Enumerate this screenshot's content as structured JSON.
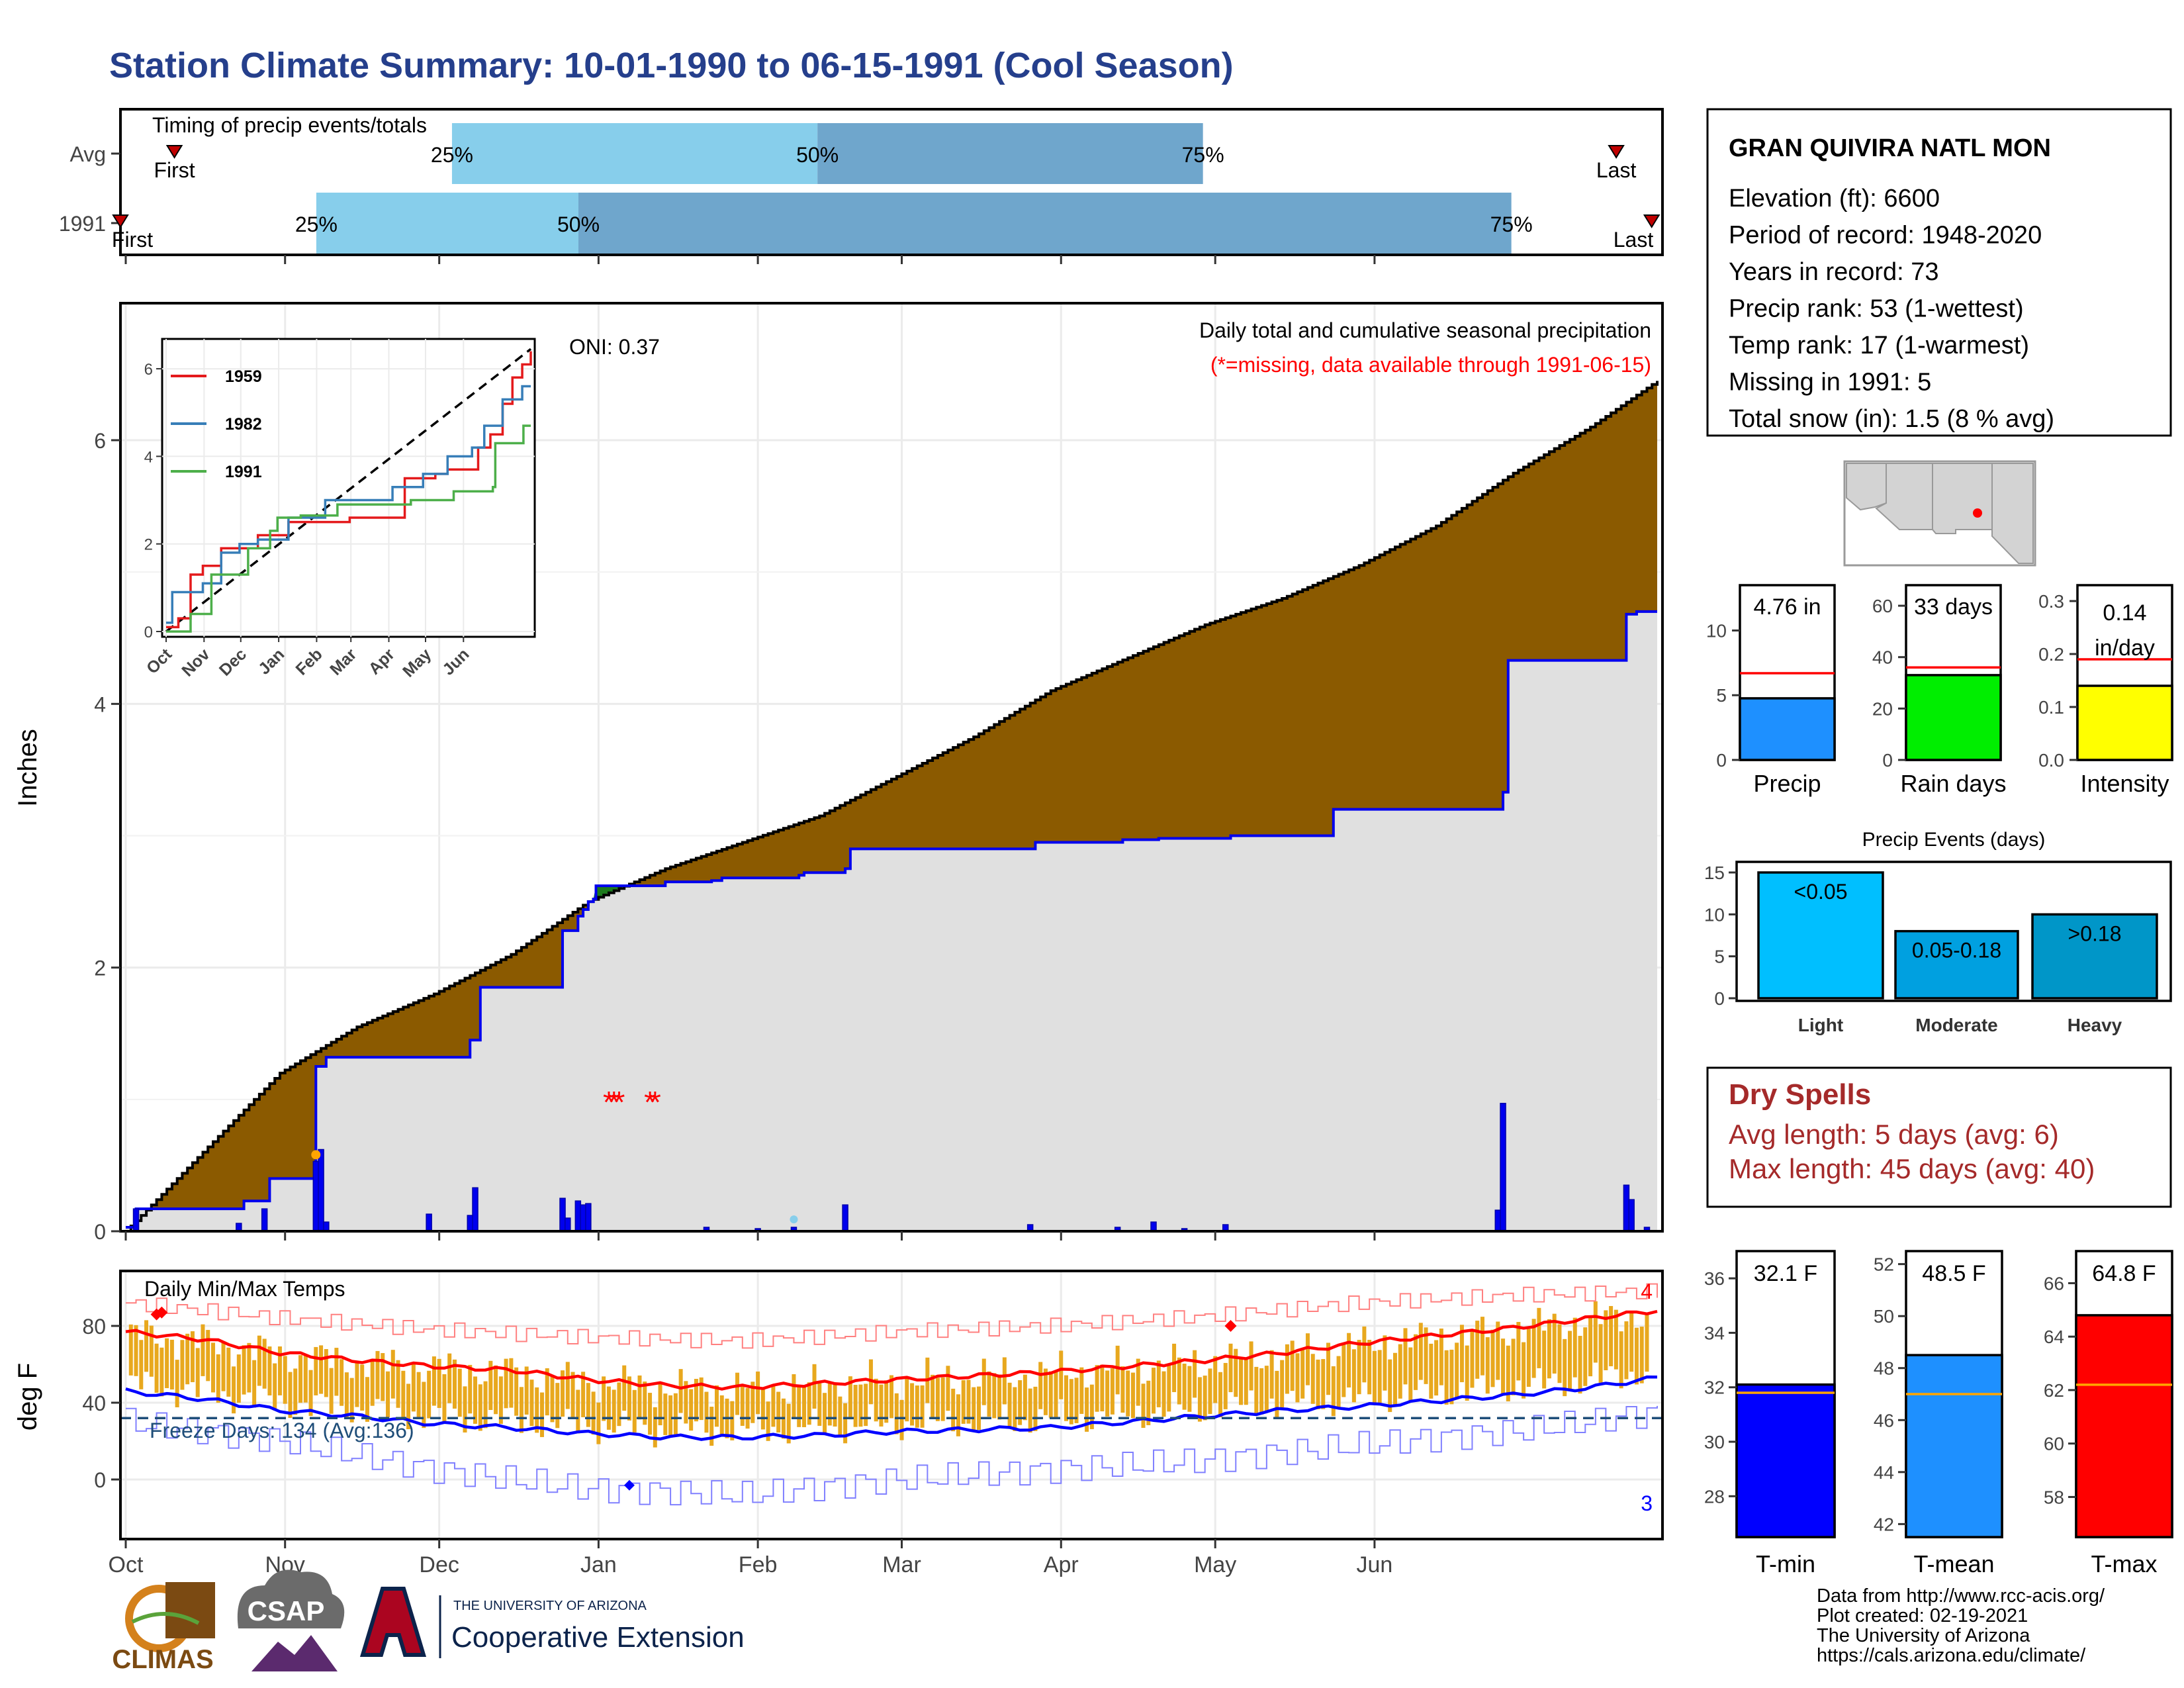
{
  "page": {
    "title": "Station Climate Summary: 10-01-1990 to 06-15-1991 (Cool Season)",
    "footer_lines": [
      "Data from http://www.rcc-acis.org/",
      "Plot created: 02-19-2021",
      "The University of Arizona",
      "https://cals.arizona.edu/climate/"
    ],
    "logos": {
      "climas": "CLIMAS",
      "csap": "CSAP",
      "ua_top": "THE UNIVERSITY OF ARIZONA",
      "ua_bottom": "Cooperative Extension"
    }
  },
  "station_box": {
    "name": "GRAN QUIVIRA NATL MON",
    "lines": [
      "Elevation (ft): 6600",
      "Period of record: 1948-2020",
      "Years in record: 73",
      "Precip rank: 53 (1-wettest)",
      "Temp rank: 17 (1-warmest)",
      "Missing in 1991: 5",
      "Total snow (in): 1.5 (8 % avg)"
    ]
  },
  "dry_spells": {
    "title": "Dry Spells",
    "lines": [
      "Avg length: 5 days (avg: 6)",
      "Max length: 45 days (avg: 40)"
    ]
  },
  "colors": {
    "title": "#253f8c",
    "cumulative_fill": "#8b5a00",
    "cumulative_below_fill": "#1c7a1c",
    "observed_line": "#0000ee",
    "avg_line": "#000000",
    "background_fill": "#e0e0e0",
    "timing_light": "#87ceeb",
    "timing_dark": "#6fa6cc",
    "temp_bars": "#e8a81e",
    "tmax": "#ff0000",
    "tmin": "#0000ff",
    "dry_spell_text": "#a52a2a"
  },
  "chart_data": [
    {
      "id": "timing",
      "type": "bar",
      "title": "Timing of precip events/totals",
      "rows": [
        {
          "label": "Avg",
          "first_pos": 0.035,
          "q25": 0.215,
          "q50": 0.452,
          "q75": 0.702,
          "last_pos": 0.97,
          "first": "First",
          "last": "Last"
        },
        {
          "label": "1991",
          "first_pos": 0.0,
          "q25": 0.127,
          "q50": 0.297,
          "q75": 0.902,
          "last_pos": 0.993,
          "first": "First",
          "last": "Last"
        }
      ],
      "q_labels": [
        "25%",
        "50%",
        "75%"
      ]
    },
    {
      "id": "precip",
      "type": "area",
      "title": "Daily total and cumulative seasonal precipitation",
      "subtitle": "(*=missing, data available through 1991-06-15)",
      "oni": "ONI: 0.37",
      "ylabel": "Inches",
      "ylim": [
        0,
        7
      ],
      "yticks": [
        0,
        2,
        4,
        6
      ],
      "xmonths": [
        "Oct",
        "Nov",
        "Dec",
        "Jan",
        "Feb",
        "Mar",
        "Apr",
        "May",
        "Jun"
      ],
      "avg_cum": [
        [
          0,
          0
        ],
        [
          15,
          0.6
        ],
        [
          30,
          1.2
        ],
        [
          45,
          1.55
        ],
        [
          60,
          1.8
        ],
        [
          75,
          2.1
        ],
        [
          90,
          2.5
        ],
        [
          105,
          2.75
        ],
        [
          120,
          2.95
        ],
        [
          135,
          3.15
        ],
        [
          150,
          3.45
        ],
        [
          165,
          3.75
        ],
        [
          180,
          4.1
        ],
        [
          195,
          4.35
        ],
        [
          210,
          4.6
        ],
        [
          225,
          4.8
        ],
        [
          240,
          5.05
        ],
        [
          255,
          5.35
        ],
        [
          270,
          5.75
        ],
        [
          285,
          6.1
        ],
        [
          298,
          6.45
        ]
      ],
      "obs_cum": [
        [
          0,
          0.03
        ],
        [
          2,
          0.17
        ],
        [
          22,
          0.17
        ],
        [
          23,
          0.23
        ],
        [
          27,
          0.23
        ],
        [
          28,
          0.4
        ],
        [
          36,
          0.4
        ],
        [
          37,
          1.25
        ],
        [
          39,
          1.32
        ],
        [
          66,
          1.32
        ],
        [
          67,
          1.45
        ],
        [
          68,
          1.45
        ],
        [
          69,
          1.85
        ],
        [
          84,
          1.85
        ],
        [
          85,
          2.28
        ],
        [
          88,
          2.39
        ],
        [
          89,
          2.44
        ],
        [
          90,
          2.5
        ],
        [
          91,
          2.52
        ],
        [
          91.5,
          2.62
        ],
        [
          103,
          2.62
        ],
        [
          105,
          2.65
        ],
        [
          114,
          2.66
        ],
        [
          116,
          2.68
        ],
        [
          131,
          2.7
        ],
        [
          132,
          2.72
        ],
        [
          140,
          2.75
        ],
        [
          141,
          2.9
        ],
        [
          176,
          2.9
        ],
        [
          177,
          2.95
        ],
        [
          193,
          2.95
        ],
        [
          194,
          2.97
        ],
        [
          201,
          2.98
        ],
        [
          208,
          2.98
        ],
        [
          215,
          3.0
        ],
        [
          234,
          3.0
        ],
        [
          235,
          3.2
        ],
        [
          267,
          3.2
        ],
        [
          268,
          3.33
        ],
        [
          269,
          4.33
        ],
        [
          291,
          4.33
        ],
        [
          292,
          4.68
        ],
        [
          294,
          4.7
        ],
        [
          298,
          4.7
        ]
      ],
      "daily_bars": [
        [
          2,
          0.17
        ],
        [
          22,
          0.06
        ],
        [
          27,
          0.17
        ],
        [
          37,
          0.53
        ],
        [
          38,
          0.62
        ],
        [
          39,
          0.07
        ],
        [
          59,
          0.13
        ],
        [
          67,
          0.12
        ],
        [
          68,
          0.33
        ],
        [
          85,
          0.25
        ],
        [
          86,
          0.1
        ],
        [
          88,
          0.23
        ],
        [
          89,
          0.2
        ],
        [
          90,
          0.21
        ],
        [
          113,
          0.03
        ],
        [
          123,
          0.02
        ],
        [
          130,
          0.03
        ],
        [
          140,
          0.2
        ],
        [
          176,
          0.05
        ],
        [
          193,
          0.03
        ],
        [
          200,
          0.07
        ],
        [
          206,
          0.02
        ],
        [
          214,
          0.05
        ],
        [
          267,
          0.16
        ],
        [
          268,
          0.97
        ],
        [
          292,
          0.35
        ],
        [
          293,
          0.24
        ],
        [
          296,
          0.03
        ]
      ],
      "missing_marks": [
        [
          94,
          1.0
        ],
        [
          95,
          1.0
        ],
        [
          96,
          1.0
        ],
        [
          102,
          1.0
        ],
        [
          103,
          1.0
        ]
      ]
    },
    {
      "id": "inset",
      "type": "line",
      "ylim": [
        0,
        6.5
      ],
      "yticks": [
        0,
        2,
        4,
        6
      ],
      "xmonths": [
        "Oct",
        "Nov",
        "Dec",
        "Jan",
        "Feb",
        "Mar",
        "Apr",
        "May",
        "Jun"
      ],
      "series": [
        {
          "name": "1959",
          "color": "#e41a1c",
          "points": [
            [
              0,
              0.1
            ],
            [
              10,
              0.3
            ],
            [
              20,
              1.3
            ],
            [
              30,
              1.5
            ],
            [
              45,
              1.9
            ],
            [
              60,
              1.9
            ],
            [
              75,
              2.2
            ],
            [
              100,
              2.5
            ],
            [
              150,
              2.6
            ],
            [
              185,
              2.6
            ],
            [
              195,
              3.5
            ],
            [
              220,
              3.6
            ],
            [
              230,
              3.7
            ],
            [
              255,
              4.2
            ],
            [
              265,
              4.5
            ],
            [
              275,
              5.2
            ],
            [
              283,
              5.8
            ],
            [
              291,
              6.1
            ],
            [
              298,
              6.4
            ]
          ]
        },
        {
          "name": "1982",
          "color": "#377eb8",
          "points": [
            [
              0,
              0.2
            ],
            [
              5,
              0.9
            ],
            [
              30,
              1.1
            ],
            [
              45,
              1.8
            ],
            [
              60,
              2.0
            ],
            [
              75,
              2.1
            ],
            [
              100,
              2.6
            ],
            [
              130,
              3.0
            ],
            [
              175,
              3.0
            ],
            [
              185,
              3.3
            ],
            [
              210,
              3.6
            ],
            [
              230,
              4.0
            ],
            [
              250,
              4.2
            ],
            [
              260,
              4.7
            ],
            [
              275,
              5.3
            ],
            [
              283,
              5.3
            ],
            [
              291,
              5.6
            ],
            [
              298,
              5.6
            ]
          ]
        },
        {
          "name": "1991",
          "color": "#4daf4a",
          "points": [
            [
              0,
              0.0
            ],
            [
              20,
              0.4
            ],
            [
              37,
              1.3
            ],
            [
              67,
              1.9
            ],
            [
              85,
              2.3
            ],
            [
              91,
              2.6
            ],
            [
              110,
              2.65
            ],
            [
              140,
              2.9
            ],
            [
              175,
              2.9
            ],
            [
              200,
              3.0
            ],
            [
              234,
              3.0
            ],
            [
              235,
              3.2
            ],
            [
              267,
              3.3
            ],
            [
              269,
              4.3
            ],
            [
              291,
              4.3
            ],
            [
              292,
              4.7
            ],
            [
              298,
              4.7
            ]
          ]
        }
      ],
      "avg_line": [
        [
          0,
          0
        ],
        [
          298,
          6.45
        ]
      ]
    },
    {
      "id": "summary_bars",
      "type": "bar",
      "panels": [
        {
          "label": "Precip",
          "value": 4.76,
          "avg": 6.7,
          "ymax": 13.5,
          "yticks": [
            0,
            5,
            10
          ],
          "display": "4.76 in",
          "color": "#1e90ff"
        },
        {
          "label": "Rain days",
          "value": 33,
          "avg": 36,
          "ymax": 68,
          "yticks": [
            0,
            20,
            40,
            60
          ],
          "display": "33 days",
          "color": "#00ee00"
        },
        {
          "label": "Intensity",
          "value": 0.14,
          "avg": 0.19,
          "ymax": 0.33,
          "yticks": [
            0.0,
            0.1,
            0.2,
            0.3
          ],
          "display_lines": [
            "0.14",
            "in/day"
          ],
          "color": "#ffff00"
        }
      ]
    },
    {
      "id": "precip_events",
      "type": "bar",
      "title": "Precip Events (days)",
      "categories": [
        "Light",
        "Moderate",
        "Heavy"
      ],
      "values": [
        15,
        8,
        10
      ],
      "bar_labels": [
        "<0.05",
        "0.05-0.18",
        ">0.18"
      ],
      "colors": [
        "#00bfff",
        "#00a0e0",
        "#0096c8"
      ],
      "ylim": [
        0,
        15.5
      ],
      "yticks": [
        0,
        5,
        10,
        15
      ]
    },
    {
      "id": "temps",
      "type": "line",
      "title": "Daily Min/Max Temps",
      "ylabel": "deg F",
      "ylim": [
        -30,
        100
      ],
      "yticks": [
        0,
        40,
        80
      ],
      "freeze_label": "Freeze Days: 134 (Avg:136)",
      "freeze_line": 32,
      "record_high_count": "4",
      "record_low_count": "3",
      "xmonths": [
        "Oct",
        "Nov",
        "Dec",
        "Jan",
        "Feb",
        "Mar",
        "Apr",
        "May",
        "Jun"
      ],
      "avg_tmax": [
        [
          0,
          77
        ],
        [
          15,
          73
        ],
        [
          30,
          66
        ],
        [
          45,
          62
        ],
        [
          60,
          59
        ],
        [
          75,
          57
        ],
        [
          90,
          52
        ],
        [
          105,
          49
        ],
        [
          120,
          48
        ],
        [
          135,
          50
        ],
        [
          150,
          52
        ],
        [
          165,
          54
        ],
        [
          180,
          56
        ],
        [
          195,
          59
        ],
        [
          210,
          62
        ],
        [
          225,
          66
        ],
        [
          240,
          71
        ],
        [
          255,
          75
        ],
        [
          270,
          79
        ],
        [
          285,
          84
        ],
        [
          298,
          88
        ]
      ],
      "avg_tmin": [
        [
          0,
          46
        ],
        [
          15,
          42
        ],
        [
          30,
          36
        ],
        [
          45,
          33
        ],
        [
          60,
          29
        ],
        [
          75,
          27
        ],
        [
          90,
          24
        ],
        [
          105,
          22
        ],
        [
          120,
          22
        ],
        [
          135,
          23
        ],
        [
          150,
          25
        ],
        [
          165,
          26
        ],
        [
          180,
          27
        ],
        [
          195,
          30
        ],
        [
          210,
          33
        ],
        [
          225,
          36
        ],
        [
          240,
          38
        ],
        [
          255,
          41
        ],
        [
          270,
          44
        ],
        [
          285,
          48
        ],
        [
          298,
          53
        ]
      ],
      "rec_high": [
        [
          0,
          92
        ],
        [
          30,
          84
        ],
        [
          60,
          78
        ],
        [
          90,
          74
        ],
        [
          120,
          72
        ],
        [
          150,
          77
        ],
        [
          180,
          80
        ],
        [
          210,
          85
        ],
        [
          240,
          92
        ],
        [
          270,
          96
        ],
        [
          298,
          98
        ]
      ],
      "rec_low": [
        [
          0,
          30
        ],
        [
          30,
          20
        ],
        [
          60,
          5
        ],
        [
          90,
          -5
        ],
        [
          120,
          -8
        ],
        [
          150,
          0
        ],
        [
          180,
          5
        ],
        [
          210,
          10
        ],
        [
          240,
          18
        ],
        [
          270,
          25
        ],
        [
          298,
          35
        ]
      ]
    },
    {
      "id": "temp_summary",
      "type": "bar",
      "panels": [
        {
          "label": "T-min",
          "value": 32.1,
          "avg": 31.8,
          "ymin": 26.5,
          "ymax": 37,
          "yticks": [
            28,
            30,
            32,
            34,
            36
          ],
          "display": "32.1 F",
          "color": "#0000ff"
        },
        {
          "label": "T-mean",
          "value": 48.5,
          "avg": 47.0,
          "ymin": 41.5,
          "ymax": 52.5,
          "yticks": [
            42,
            44,
            46,
            48,
            50,
            52
          ],
          "display": "48.5 F",
          "color": "#1e90ff"
        },
        {
          "label": "T-max",
          "value": 64.8,
          "avg": 62.2,
          "ymin": 56.5,
          "ymax": 67.2,
          "yticks": [
            58,
            60,
            62,
            64,
            66
          ],
          "display": "64.8 F",
          "color": "#ff0000"
        }
      ]
    }
  ]
}
